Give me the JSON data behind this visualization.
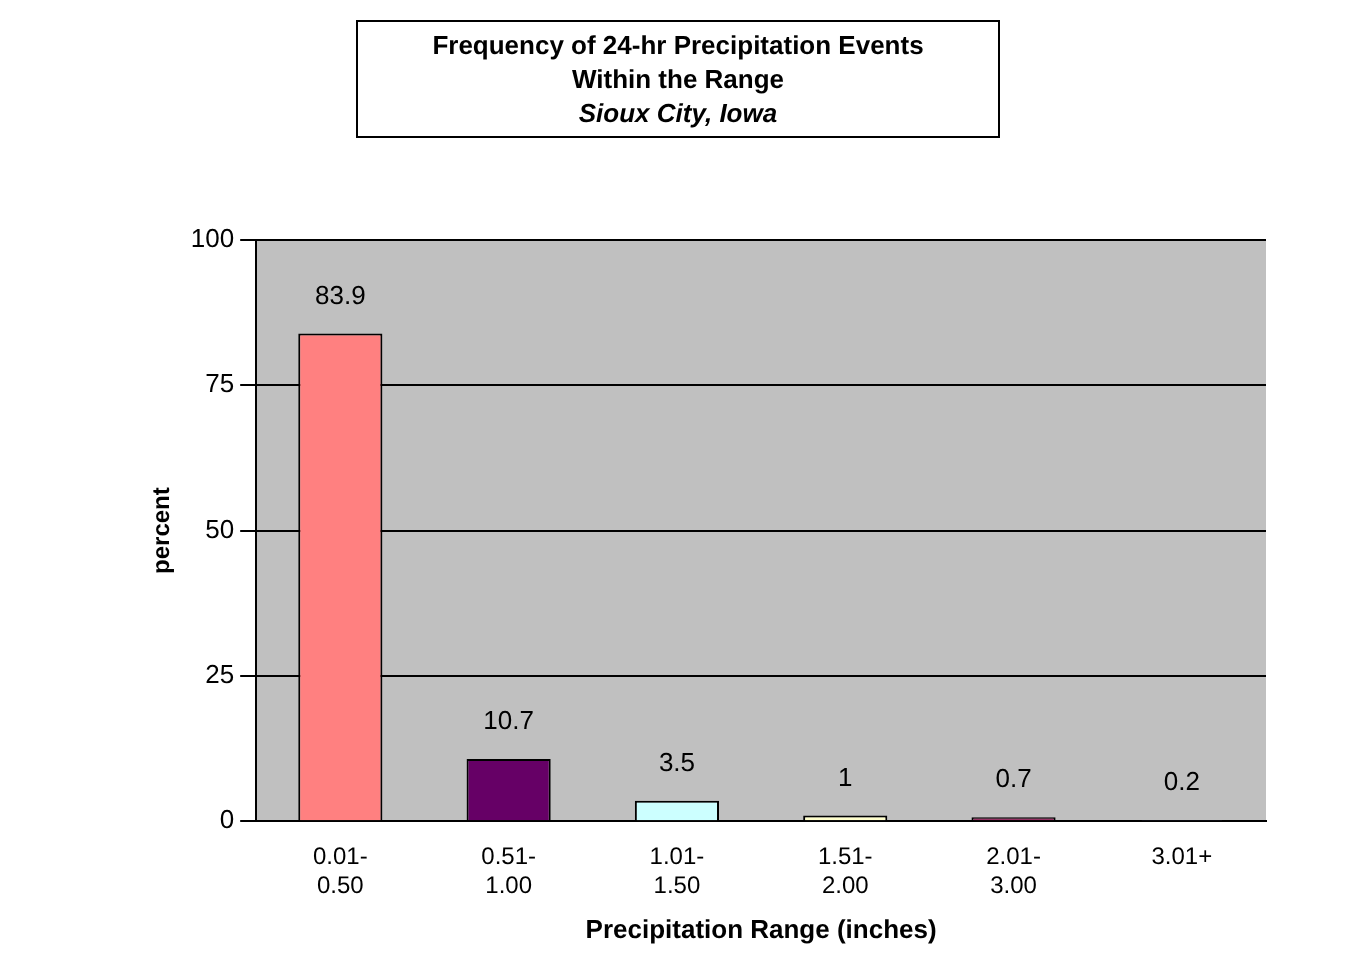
{
  "chart_data": {
    "type": "bar",
    "title": "Frequency of 24-hr Precipitation Events\nWithin the Range",
    "subtitle": "Sioux City, Iowa",
    "categories": [
      "0.01- 0.50",
      "0.51- 1.00",
      "1.01- 1.50",
      "1.51- 2.00",
      "2.01- 3.00",
      "3.01+"
    ],
    "values": [
      83.9,
      10.7,
      3.5,
      1,
      0.7,
      0.2
    ],
    "colors": [
      "#ff8080",
      "#660066",
      "#ccffff",
      "#ffffcc",
      "#993366",
      "#9999ff"
    ],
    "xlabel": "Precipitation Range (inches)",
    "ylabel": "percent",
    "ylim": [
      0,
      100
    ],
    "yticks": [
      0,
      25,
      50,
      75,
      100
    ],
    "grid": "y",
    "legend": false,
    "data_labels": true
  }
}
